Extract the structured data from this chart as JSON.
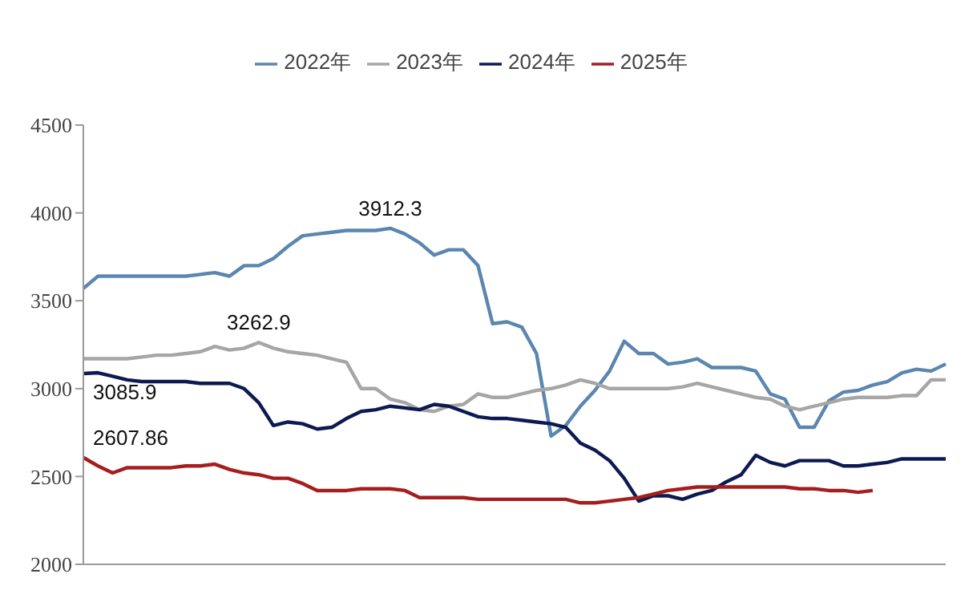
{
  "chart_data": {
    "type": "line",
    "categories": [
      null,
      null,
      null,
      null,
      null,
      null,
      null,
      null,
      null,
      null,
      null,
      null,
      null,
      null,
      null,
      null,
      null,
      null,
      null,
      null,
      null,
      null,
      null,
      null,
      null,
      null,
      null,
      null,
      null,
      null,
      null,
      null,
      null,
      null,
      null,
      null,
      null,
      null,
      null,
      null,
      null,
      null,
      null,
      null,
      null,
      null,
      null,
      null,
      null,
      null,
      null,
      null,
      null,
      null,
      null,
      null,
      null,
      null,
      null,
      null
    ],
    "series": [
      {
        "name": "2022年",
        "color": "#5b86b0",
        "values": [
          3570,
          3640,
          3640,
          3640,
          3640,
          3640,
          3640,
          3640,
          3650,
          3660,
          3640,
          3700,
          3700,
          3740,
          3810,
          3870,
          3880,
          3890,
          3900,
          3900,
          3900,
          3912.3,
          3880,
          3830,
          3760,
          3790,
          3790,
          3700,
          3370,
          3380,
          3350,
          3200,
          2730,
          2790,
          2900,
          2990,
          3100,
          3270,
          3200,
          3200,
          3140,
          3150,
          3170,
          3120,
          3120,
          3120,
          3100,
          2970,
          2940,
          2780,
          2780,
          2930,
          2980,
          2990,
          3020,
          3040,
          3090,
          3110,
          3100,
          3140
        ],
        "value_labels": [
          null,
          null,
          null,
          null,
          null,
          null,
          null,
          null,
          null,
          null,
          null,
          null,
          null,
          null,
          null,
          null,
          null,
          null,
          null,
          null,
          null,
          "3912.3",
          null,
          null,
          null,
          null,
          null,
          null,
          null,
          null,
          null,
          null,
          null,
          null,
          null,
          null,
          null,
          null,
          null,
          null,
          null,
          null,
          null,
          null,
          null,
          null,
          null,
          null,
          null,
          null,
          null,
          null,
          null,
          null,
          null,
          null,
          null,
          null,
          null,
          null
        ]
      },
      {
        "name": "2023年",
        "color": "#a6a6a6",
        "values": [
          3170,
          3170,
          3170,
          3170,
          3180,
          3190,
          3190,
          3200,
          3210,
          3240,
          3220,
          3230,
          3262.9,
          3230,
          3210,
          3200,
          3190,
          3170,
          3150,
          3000,
          3000,
          2940,
          2920,
          2880,
          2870,
          2900,
          2910,
          2970,
          2950,
          2950,
          2970,
          2990,
          3000,
          3020,
          3050,
          3030,
          3000,
          3000,
          3000,
          3000,
          3000,
          3010,
          3030,
          3010,
          2990,
          2970,
          2950,
          2940,
          2900,
          2880,
          2900,
          2920,
          2940,
          2950,
          2950,
          2950,
          2960,
          2960,
          3050,
          3050
        ],
        "value_labels": [
          null,
          null,
          null,
          null,
          null,
          null,
          null,
          null,
          null,
          null,
          null,
          null,
          "3262.9",
          null,
          null,
          null,
          null,
          null,
          null,
          null,
          null,
          null,
          null,
          null,
          null,
          null,
          null,
          null,
          null,
          null,
          null,
          null,
          null,
          null,
          null,
          null,
          null,
          null,
          null,
          null,
          null,
          null,
          null,
          null,
          null,
          null,
          null,
          null,
          null,
          null,
          null,
          null,
          null,
          null,
          null,
          null,
          null,
          null,
          null,
          null
        ]
      },
      {
        "name": "2024年",
        "color": "#0d1a52",
        "values": [
          3085.9,
          3090,
          3070,
          3050,
          3040,
          3040,
          3040,
          3040,
          3030,
          3030,
          3030,
          3000,
          2920,
          2790,
          2810,
          2800,
          2770,
          2780,
          2830,
          2870,
          2880,
          2900,
          2890,
          2880,
          2910,
          2900,
          2870,
          2840,
          2830,
          2830,
          2820,
          2810,
          2800,
          2780,
          2690,
          2650,
          2590,
          2490,
          2360,
          2390,
          2390,
          2370,
          2400,
          2420,
          2470,
          2510,
          2620,
          2580,
          2560,
          2590,
          2590,
          2590,
          2560,
          2560,
          2570,
          2580,
          2600,
          2600,
          2600,
          2600
        ],
        "value_labels": [
          "3085.9",
          null,
          null,
          null,
          null,
          null,
          null,
          null,
          null,
          null,
          null,
          null,
          null,
          null,
          null,
          null,
          null,
          null,
          null,
          null,
          null,
          null,
          null,
          null,
          null,
          null,
          null,
          null,
          null,
          null,
          null,
          null,
          null,
          null,
          null,
          null,
          null,
          null,
          null,
          null,
          null,
          null,
          null,
          null,
          null,
          null,
          null,
          null,
          null,
          null,
          null,
          null,
          null,
          null,
          null,
          null,
          null,
          null,
          null,
          null
        ]
      },
      {
        "name": "2025年",
        "color": "#a51e1e",
        "values": [
          2607.86,
          2560,
          2520,
          2550,
          2550,
          2550,
          2550,
          2560,
          2560,
          2570,
          2540,
          2520,
          2510,
          2490,
          2490,
          2460,
          2420,
          2420,
          2420,
          2430,
          2430,
          2430,
          2420,
          2380,
          2380,
          2380,
          2380,
          2370,
          2370,
          2370,
          2370,
          2370,
          2370,
          2370,
          2350,
          2350,
          2360,
          2370,
          2380,
          2400,
          2420,
          2430,
          2440,
          2440,
          2440,
          2440,
          2440,
          2440,
          2440,
          2430,
          2430,
          2420,
          2420,
          2410,
          2420,
          null,
          null,
          null,
          null,
          null
        ],
        "value_labels": [
          "2607.86",
          null,
          null,
          null,
          null,
          null,
          null,
          null,
          null,
          null,
          null,
          null,
          null,
          null,
          null,
          null,
          null,
          null,
          null,
          null,
          null,
          null,
          null,
          null,
          null,
          null,
          null,
          null,
          null,
          null,
          null,
          null,
          null,
          null,
          null,
          null,
          null,
          null,
          null,
          null,
          null,
          null,
          null,
          null,
          null,
          null,
          null,
          null,
          null,
          null,
          null,
          null,
          null,
          null,
          null,
          null,
          null,
          null,
          null,
          null
        ]
      }
    ],
    "ylim": [
      2000,
      4500
    ],
    "yticks": [
      2000,
      2500,
      3000,
      3500,
      4000,
      4500
    ],
    "legend": "top",
    "tick_labels": "y",
    "marker": "none",
    "line_style": "solid"
  }
}
